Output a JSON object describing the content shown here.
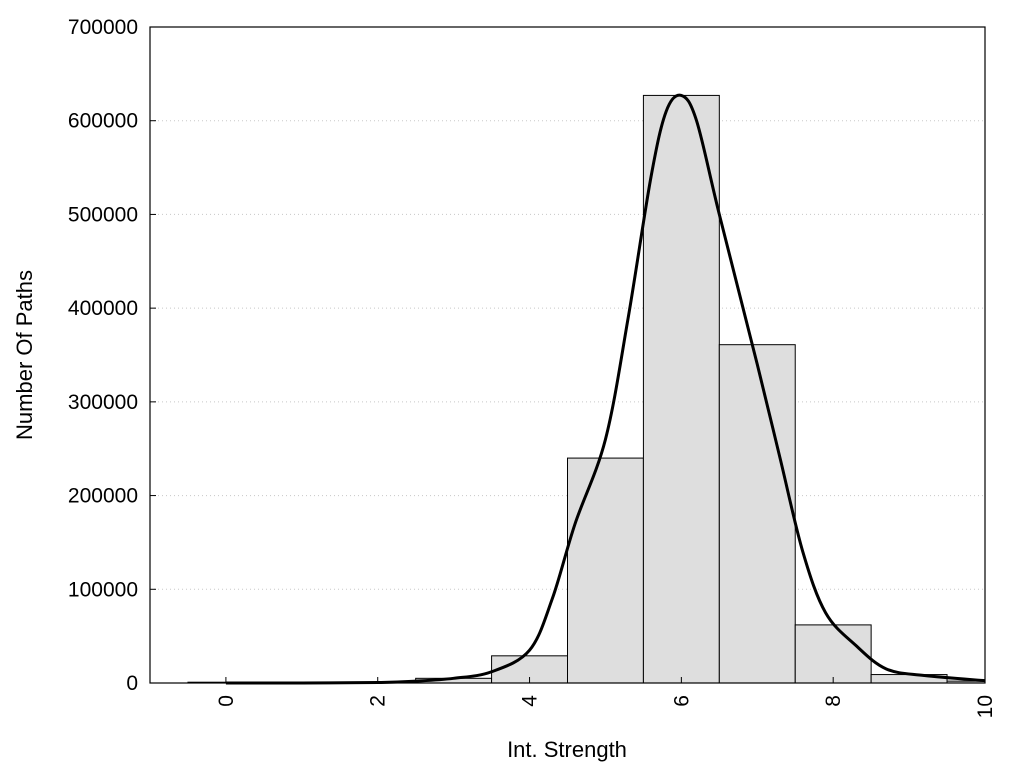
{
  "chart_data": {
    "type": "bar",
    "title": "",
    "xlabel": "Int. Strength",
    "ylabel": "Number Of Paths",
    "xlim": [
      -1,
      10
    ],
    "ylim": [
      0,
      700000
    ],
    "xticks": [
      0,
      2,
      4,
      6,
      8,
      10
    ],
    "yticks": [
      0,
      100000,
      200000,
      300000,
      400000,
      500000,
      600000,
      700000
    ],
    "grid": "horizontal dotted",
    "legend": "none",
    "bin_width": 1,
    "bars": [
      {
        "x": 0,
        "y": 300
      },
      {
        "x": 1,
        "y": 400
      },
      {
        "x": 2,
        "y": 1000
      },
      {
        "x": 3,
        "y": 5000
      },
      {
        "x": 4,
        "y": 29000
      },
      {
        "x": 5,
        "y": 240000
      },
      {
        "x": 6,
        "y": 627000
      },
      {
        "x": 7,
        "y": 361000
      },
      {
        "x": 8,
        "y": 62000
      },
      {
        "x": 9,
        "y": 9000
      },
      {
        "x": 10,
        "y": 2000
      }
    ],
    "curve": [
      {
        "x": 0,
        "y": 0
      },
      {
        "x": 1,
        "y": 0
      },
      {
        "x": 2,
        "y": 500
      },
      {
        "x": 2.5,
        "y": 2000
      },
      {
        "x": 3,
        "y": 5000
      },
      {
        "x": 3.5,
        "y": 12000
      },
      {
        "x": 4,
        "y": 35000
      },
      {
        "x": 4.3,
        "y": 90000
      },
      {
        "x": 4.6,
        "y": 170000
      },
      {
        "x": 5,
        "y": 260000
      },
      {
        "x": 5.3,
        "y": 390000
      },
      {
        "x": 5.6,
        "y": 540000
      },
      {
        "x": 5.8,
        "y": 610000
      },
      {
        "x": 6,
        "y": 627000
      },
      {
        "x": 6.2,
        "y": 600000
      },
      {
        "x": 6.5,
        "y": 500000
      },
      {
        "x": 7,
        "y": 340000
      },
      {
        "x": 7.3,
        "y": 240000
      },
      {
        "x": 7.6,
        "y": 140000
      },
      {
        "x": 7.9,
        "y": 75000
      },
      {
        "x": 8.3,
        "y": 40000
      },
      {
        "x": 8.7,
        "y": 15000
      },
      {
        "x": 9.2,
        "y": 8000
      },
      {
        "x": 10,
        "y": 2500
      }
    ],
    "colors": {
      "bar_fill": "#dedede",
      "bar_stroke": "#000000",
      "curve": "#000000"
    }
  }
}
